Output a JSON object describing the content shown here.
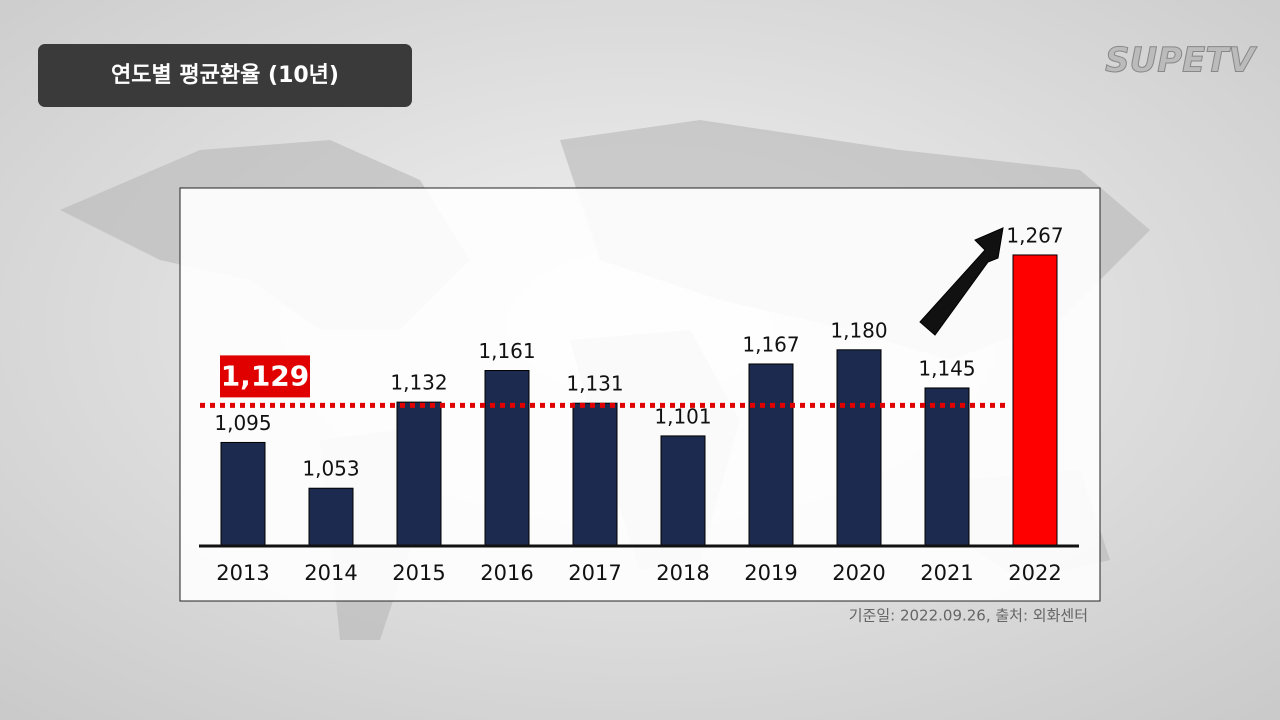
{
  "logo": "SUPETV",
  "chart_data": {
    "type": "bar",
    "title": "연도별 평균환율 (10년)",
    "categories": [
      "2013",
      "2014",
      "2015",
      "2016",
      "2017",
      "2018",
      "2019",
      "2020",
      "2021",
      "2022"
    ],
    "values": [
      1095,
      1053,
      1132,
      1161,
      1131,
      1101,
      1167,
      1180,
      1145,
      1267
    ],
    "value_labels": [
      "1,095",
      "1,053",
      "1,132",
      "1,161",
      "1,131",
      "1,101",
      "1,167",
      "1,180",
      "1,145",
      "1,267"
    ],
    "colors": [
      "#1b2a4e",
      "#1b2a4e",
      "#1b2a4e",
      "#1b2a4e",
      "#1b2a4e",
      "#1b2a4e",
      "#1b2a4e",
      "#1b2a4e",
      "#1b2a4e",
      "#ff0000"
    ],
    "ylim": [
      1000,
      1300
    ],
    "reference_line": {
      "value": 1129,
      "label": "1,129",
      "color": "#e00000"
    },
    "source": "기준일: 2022.09.26,  출처: 외화센터"
  }
}
